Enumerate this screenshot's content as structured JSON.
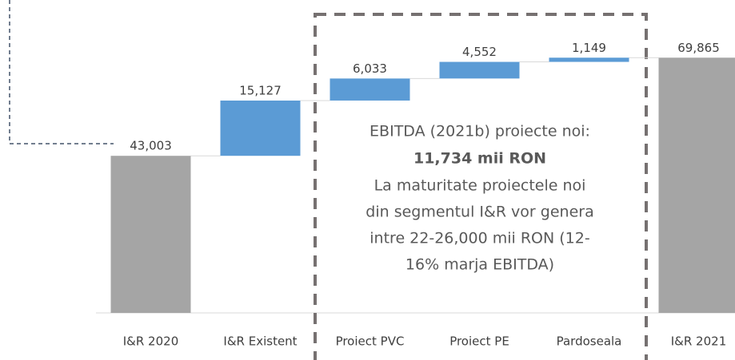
{
  "chart_data": {
    "type": "waterfall",
    "categories": [
      "I&R 2020",
      "I&R Existent",
      "Proiect PVC",
      "Proiect PE",
      "Pardoseala",
      "I&R 2021"
    ],
    "values": [
      43003,
      15127,
      6033,
      4552,
      1149,
      69865
    ],
    "value_labels": [
      "43,003",
      "15,127",
      "6,033",
      "4,552",
      "1,149",
      "69,865"
    ],
    "total_color": "#a5a5a5",
    "increase_color": "#5b9bd5",
    "ylim": [
      0,
      85000
    ],
    "annotation": [
      "EBITDA (2021b) proiecte noi:",
      "11,734 mii RON",
      "La maturitate proiectele noi",
      "din segmentul I&R vor genera",
      "intre 22-26,000 mii RON (12-",
      "16% marja EBITDA)"
    ]
  }
}
